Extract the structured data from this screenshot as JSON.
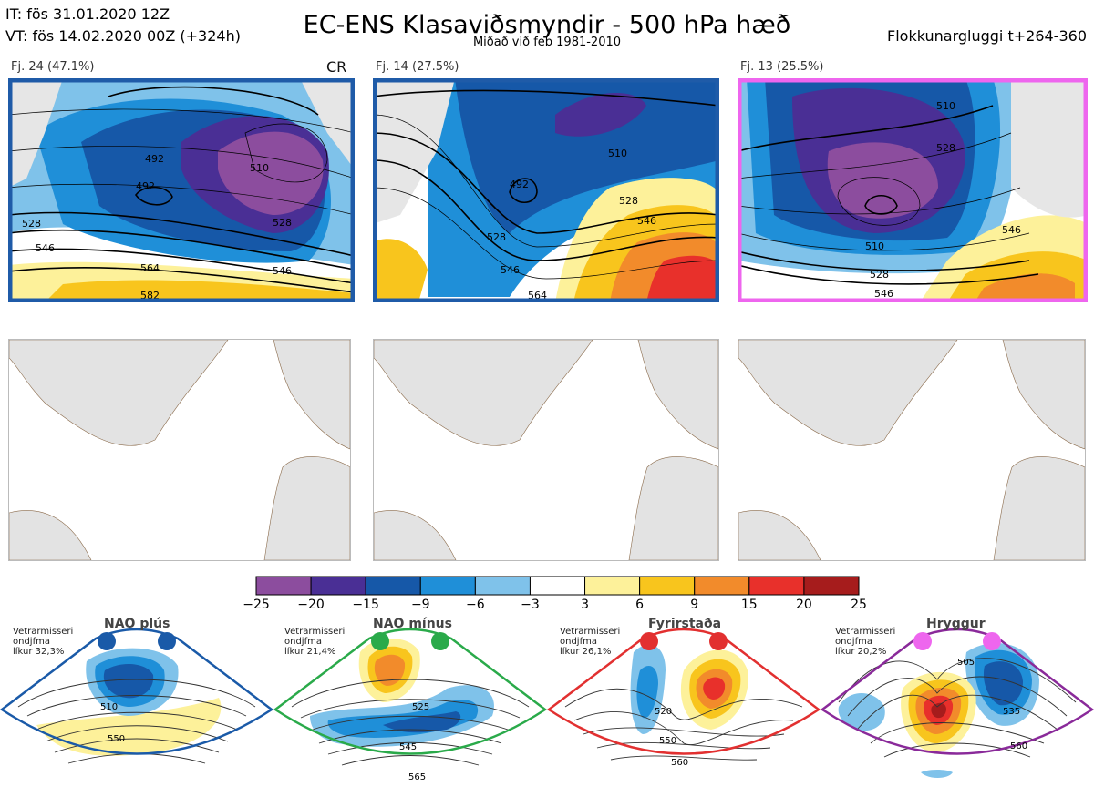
{
  "header": {
    "it": "IT: fös 31.01.2020 12Z",
    "vt": "VT: fös 14.02.2020 00Z  (+324h)",
    "title": "EC-ENS Klasaviðsmyndir - 500 hPa hæð",
    "subtitle": "Miðað við feb 1981-2010",
    "window": "Flokkunargluggi t+264-360"
  },
  "clusters": [
    {
      "label": "Fj. 24 (47.1%)",
      "tag": "CR",
      "border": "#1f5ba8",
      "contours": [
        "492",
        "510",
        "528",
        "528",
        "546",
        "564",
        "582",
        "492",
        "546"
      ]
    },
    {
      "label": "Fj. 14 (27.5%)",
      "tag": "",
      "border": "#1f5ba8",
      "contours": [
        "510",
        "492",
        "528",
        "546",
        "546",
        "528",
        "564"
      ]
    },
    {
      "label": "Fj. 13 (25.5%)",
      "tag": "",
      "border": "#ee66ee",
      "contours": [
        "510",
        "528",
        "510",
        "528",
        "546",
        "546"
      ]
    }
  ],
  "colorbar": {
    "colors": [
      "#8c4d9e",
      "#4a2f95",
      "#1658a8",
      "#1f8fd8",
      "#7fc2ea",
      "#ffffff",
      "#fdf19a",
      "#f8c51d",
      "#f28b2b",
      "#e8302b",
      "#a61c1c"
    ],
    "ticks": [
      "−25",
      "−20",
      "−15",
      "−9",
      "−6",
      "−3",
      "3",
      "6",
      "9",
      "15",
      "20",
      "25"
    ]
  },
  "regimes": [
    {
      "name": "NAO plús",
      "note": "Vetrarmisseri\nondjfma\nlíkur 32,3%",
      "color": "#1a5aa8",
      "dot": "#1a5aa8",
      "contours": [
        "510",
        "550"
      ]
    },
    {
      "name": "NAO mínus",
      "note": "Vetrarmisseri\nondjfma\nlíkur 21,4%",
      "color": "#2aaa4a",
      "dot": "#2aaa4a",
      "contours": [
        "525",
        "545",
        "565"
      ]
    },
    {
      "name": "Fyrirstaða",
      "note": "Vetrarmisseri\nondjfma\nlíkur 26,1%",
      "color": "#e23030",
      "dot": "#e23030",
      "contours": [
        "520",
        "550",
        "560"
      ]
    },
    {
      "name": "Hryggur",
      "note": "Vetrarmisseri\nondjfma\nlíkur 20,2%",
      "color": "#8a2a9a",
      "dot": "#ee66ee",
      "contours": [
        "505",
        "535",
        "560"
      ]
    }
  ]
}
